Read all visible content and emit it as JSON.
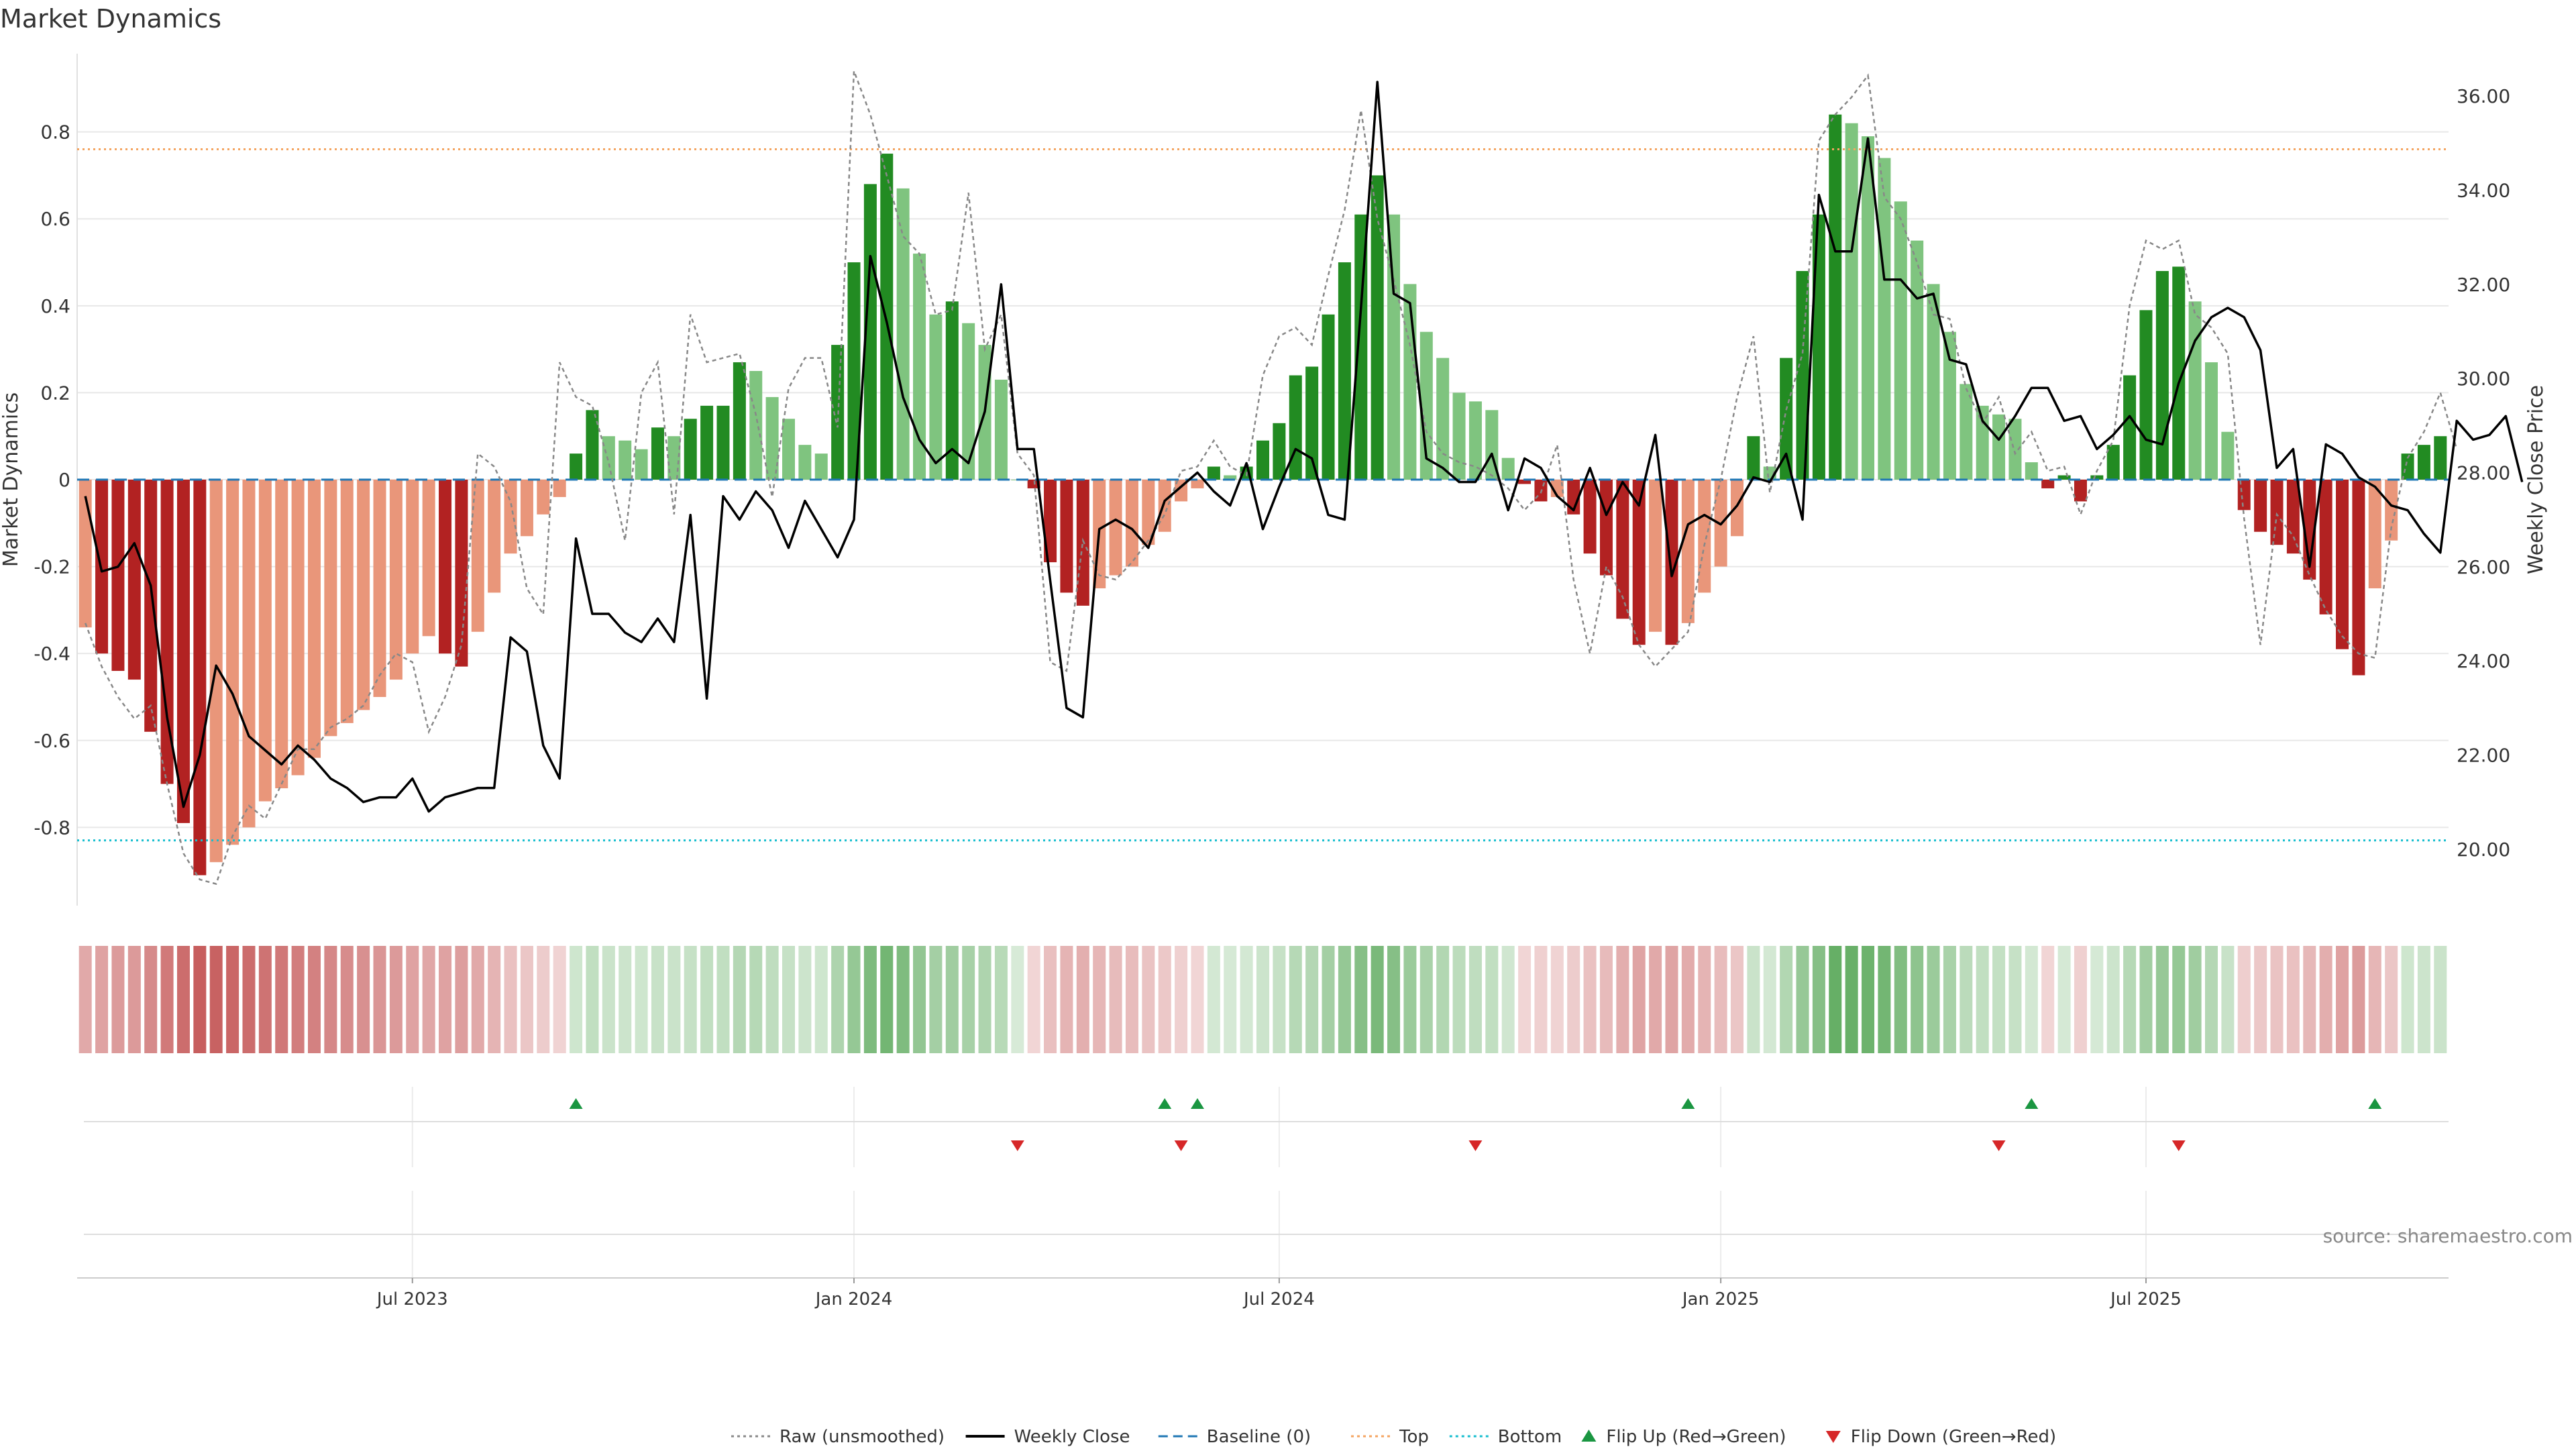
{
  "chart_data": {
    "type": "bar",
    "title": "Market Dynamics",
    "ylabel": "Market Dynamics",
    "y2label": "Weekly Close Price",
    "ylim": [
      -0.98,
      0.98
    ],
    "y2lim": [
      18.8,
      36.9
    ],
    "yticks": [
      "-0.8",
      "-0.6",
      "-0.4",
      "-0.2",
      "0",
      "0.2",
      "0.4",
      "0.6",
      "0.8"
    ],
    "y2ticks": [
      "20.00",
      "22.00",
      "24.00",
      "26.00",
      "28.00",
      "30.00",
      "32.00",
      "34.00",
      "36.00"
    ],
    "xticks": [
      "Jul 2023",
      "Jan 2024",
      "Jul 2024",
      "Jan 2025",
      "Jul 2025"
    ],
    "xtick_weeks": [
      20,
      47,
      73,
      100,
      126
    ],
    "top_threshold": 0.76,
    "bottom_threshold": -0.83,
    "baseline": 0,
    "weeks": 145,
    "grid": true,
    "legend_position": "bottom-center",
    "smoothed": [
      -0.34,
      -0.4,
      -0.44,
      -0.46,
      -0.58,
      -0.7,
      -0.79,
      -0.91,
      -0.88,
      -0.84,
      -0.8,
      -0.74,
      -0.71,
      -0.68,
      -0.64,
      -0.59,
      -0.56,
      -0.53,
      -0.5,
      -0.46,
      -0.4,
      -0.36,
      -0.4,
      -0.43,
      -0.35,
      -0.26,
      -0.17,
      -0.13,
      -0.08,
      -0.04,
      0.06,
      0.16,
      0.1,
      0.09,
      0.07,
      0.12,
      0.1,
      0.14,
      0.17,
      0.17,
      0.27,
      0.25,
      0.19,
      0.14,
      0.08,
      0.06,
      0.31,
      0.5,
      0.68,
      0.75,
      0.67,
      0.52,
      0.38,
      0.41,
      0.36,
      0.31,
      0.23,
      0.0,
      -0.02,
      -0.19,
      -0.26,
      -0.29,
      -0.25,
      -0.22,
      -0.2,
      -0.15,
      -0.12,
      -0.05,
      -0.02,
      0.03,
      0.01,
      0.03,
      0.09,
      0.13,
      0.24,
      0.26,
      0.38,
      0.5,
      0.61,
      0.7,
      0.61,
      0.45,
      0.34,
      0.28,
      0.2,
      0.18,
      0.16,
      0.05,
      -0.01,
      -0.05,
      -0.04,
      -0.08,
      -0.17,
      -0.22,
      -0.32,
      -0.38,
      -0.35,
      -0.38,
      -0.33,
      -0.26,
      -0.2,
      -0.13,
      0.1,
      0.03,
      0.28,
      0.48,
      0.61,
      0.84,
      0.82,
      0.79,
      0.74,
      0.64,
      0.55,
      0.45,
      0.34,
      0.22,
      0.17,
      0.15,
      0.14,
      0.04,
      -0.02,
      0.01,
      -0.05,
      0.01,
      0.08,
      0.24,
      0.39,
      0.48,
      0.49,
      0.41,
      0.27,
      0.11,
      -0.07,
      -0.12,
      -0.15,
      -0.17,
      -0.23,
      -0.31,
      -0.39,
      -0.45,
      -0.25,
      -0.14,
      0.06,
      0.08,
      0.1
    ],
    "raw": [
      -0.33,
      -0.43,
      -0.5,
      -0.55,
      -0.52,
      -0.7,
      -0.86,
      -0.92,
      -0.93,
      -0.82,
      -0.75,
      -0.78,
      -0.7,
      -0.62,
      -0.62,
      -0.57,
      -0.55,
      -0.52,
      -0.45,
      -0.4,
      -0.42,
      -0.58,
      -0.5,
      -0.38,
      0.06,
      0.03,
      -0.05,
      -0.25,
      -0.31,
      0.27,
      0.19,
      0.17,
      0.04,
      -0.14,
      0.2,
      0.27,
      -0.08,
      0.38,
      0.27,
      0.28,
      0.29,
      0.15,
      -0.04,
      0.21,
      0.28,
      0.28,
      0.12,
      0.94,
      0.84,
      0.7,
      0.56,
      0.52,
      0.38,
      0.39,
      0.66,
      0.3,
      0.38,
      0.06,
      0.01,
      -0.42,
      -0.44,
      -0.14,
      -0.22,
      -0.23,
      -0.19,
      -0.14,
      -0.08,
      0.02,
      0.03,
      0.09,
      0.03,
      0.01,
      0.24,
      0.33,
      0.35,
      0.31,
      0.47,
      0.62,
      0.85,
      0.6,
      0.46,
      0.31,
      0.11,
      0.06,
      0.04,
      0.03,
      0.01,
      -0.02,
      -0.07,
      -0.03,
      0.08,
      -0.23,
      -0.4,
      -0.2,
      -0.27,
      -0.38,
      -0.43,
      -0.39,
      -0.35,
      -0.15,
      0.0,
      0.19,
      0.33,
      -0.03,
      0.16,
      0.29,
      0.78,
      0.84,
      0.88,
      0.93,
      0.65,
      0.6,
      0.5,
      0.38,
      0.37,
      0.21,
      0.13,
      0.19,
      0.06,
      0.11,
      0.02,
      0.03,
      -0.08,
      0.02,
      0.09,
      0.4,
      0.55,
      0.53,
      0.55,
      0.38,
      0.35,
      0.29,
      -0.09,
      -0.38,
      -0.08,
      -0.13,
      -0.22,
      -0.3,
      -0.36,
      -0.4,
      -0.41,
      -0.11,
      0.05,
      0.11,
      0.2,
      0.07
    ],
    "price": [
      27.5,
      25.9,
      26.0,
      26.5,
      25.6,
      22.8,
      20.9,
      22.0,
      23.9,
      23.3,
      22.4,
      22.1,
      21.8,
      22.2,
      21.9,
      21.5,
      21.3,
      21.0,
      21.1,
      21.1,
      21.5,
      20.8,
      21.1,
      21.2,
      21.3,
      21.3,
      24.5,
      24.2,
      22.2,
      21.5,
      26.6,
      25.0,
      25.0,
      24.6,
      24.4,
      24.9,
      24.4,
      27.1,
      23.2,
      27.5,
      27.0,
      27.6,
      27.2,
      26.4,
      27.4,
      26.8,
      26.2,
      27.0,
      32.6,
      31.2,
      29.6,
      28.7,
      28.2,
      28.5,
      28.2,
      29.3,
      32.0,
      28.5,
      28.5,
      25.7,
      23.0,
      22.8,
      26.8,
      27.0,
      26.8,
      26.4,
      27.4,
      27.7,
      28.0,
      27.6,
      27.3,
      28.2,
      26.8,
      27.7,
      28.5,
      28.3,
      27.1,
      27.0,
      31.5,
      36.3,
      31.8,
      31.6,
      28.3,
      28.1,
      27.8,
      27.8,
      28.4,
      27.2,
      28.3,
      28.1,
      27.5,
      27.2,
      28.1,
      27.1,
      27.8,
      27.3,
      28.8,
      25.8,
      26.9,
      27.1,
      26.9,
      27.3,
      27.9,
      27.8,
      28.4,
      27.0,
      33.9,
      32.7,
      32.7,
      35.1,
      32.1,
      32.1,
      31.7,
      31.8,
      30.4,
      30.3,
      29.1,
      28.7,
      29.2,
      29.8,
      29.8,
      29.1,
      29.2,
      28.5,
      28.8,
      29.2,
      28.7,
      28.6,
      29.9,
      30.8,
      31.3,
      31.5,
      31.3,
      30.6,
      28.1,
      28.5,
      26.0,
      28.6,
      28.4,
      27.9,
      27.7,
      27.3,
      27.2,
      26.7,
      26.3,
      29.1,
      28.7,
      28.8,
      29.2,
      27.8
    ],
    "flip_up_weeks": [
      30,
      66,
      68,
      98,
      119,
      140
    ],
    "flip_down_weeks": [
      57,
      67,
      85,
      117,
      128
    ]
  },
  "source_text": "source: sharemaestro.com",
  "legend": [
    {
      "label": "Raw (unsmoothed)",
      "icon": "dotted-line"
    },
    {
      "label": "Weekly Close",
      "icon": "solid-line"
    },
    {
      "label": "Baseline (0)",
      "icon": "dashed-line"
    },
    {
      "label": "Top",
      "icon": "dotted-line"
    },
    {
      "label": "Bottom",
      "icon": "dotted-line"
    },
    {
      "label": "Flip Up (Red→Green)",
      "icon": "triangle-up"
    },
    {
      "label": "Flip Down (Green→Red)",
      "icon": "triangle-down"
    }
  ],
  "colors": {
    "pos_strong": "#228b22",
    "pos_weak": "#7fc47f",
    "neg_strong": "#b22222",
    "neg_weak": "#e9967a",
    "price": "#000000",
    "raw": "#888888",
    "baseline": "#1f77b4",
    "top": "#f4a460",
    "bottom": "#17becf",
    "flip_up": "#1a9641",
    "flip_down": "#d62728"
  }
}
